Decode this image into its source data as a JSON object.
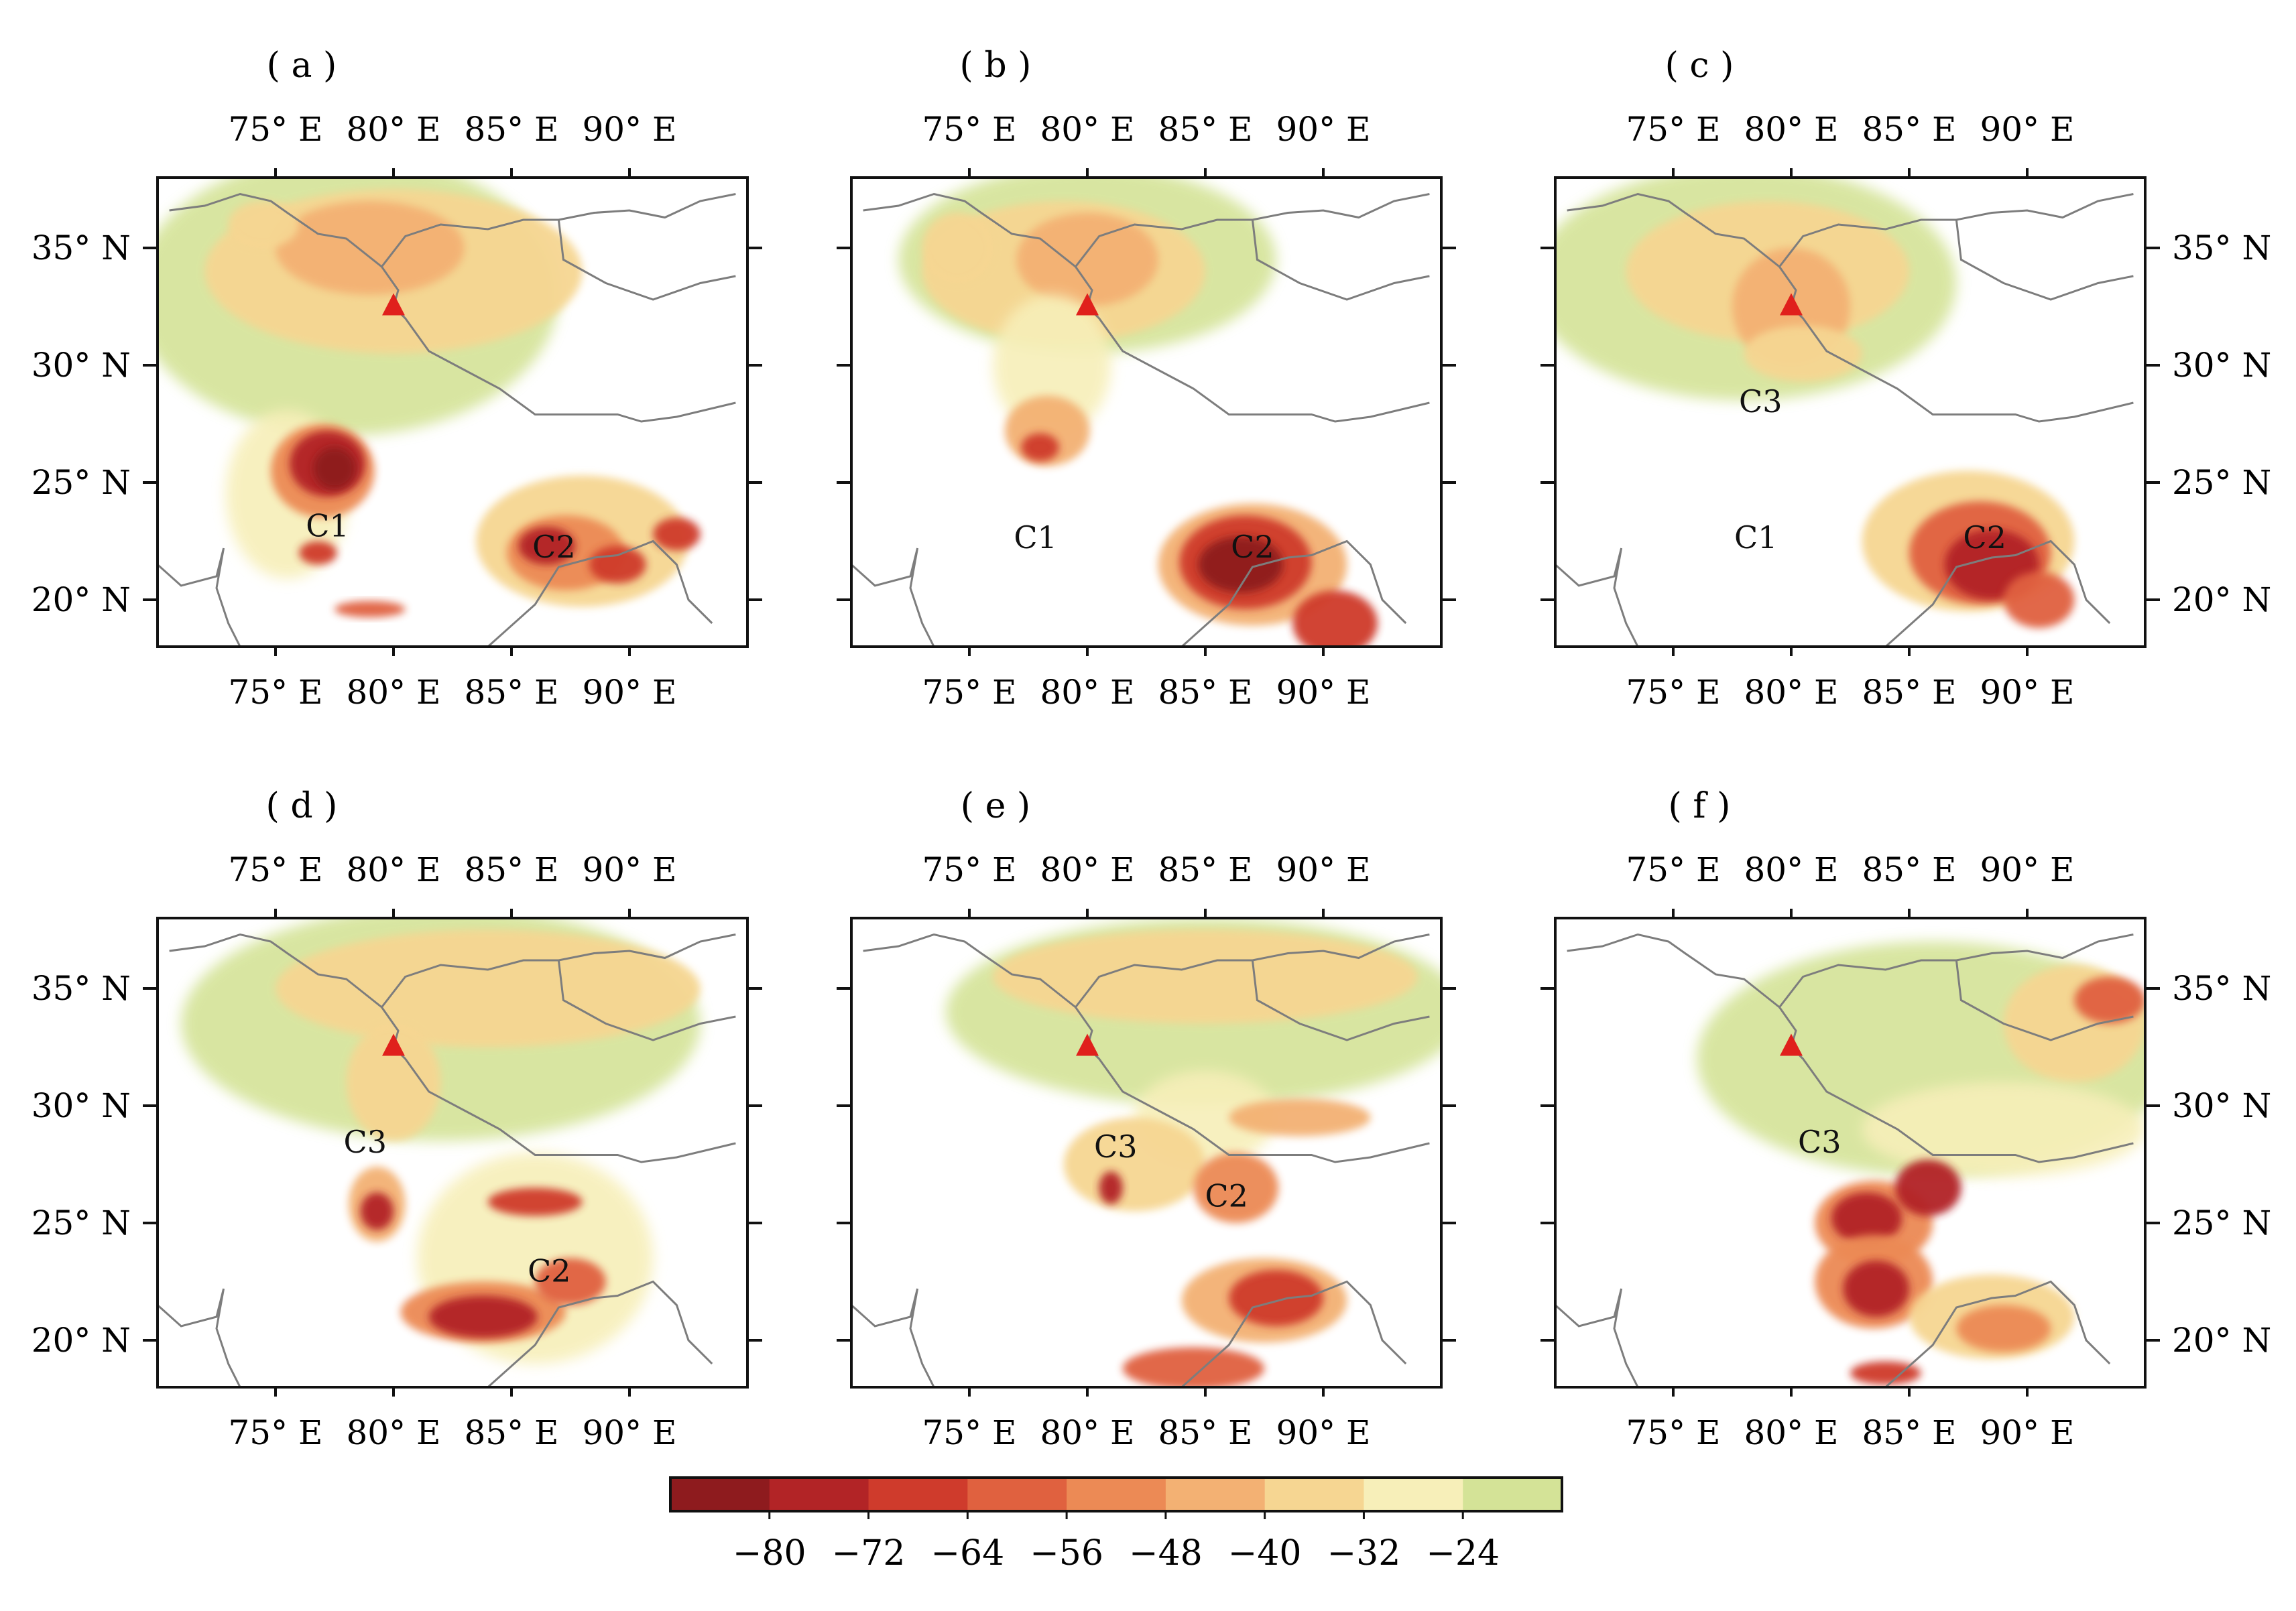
{
  "panels": [
    {
      "label": "( a )",
      "volcano": true,
      "cells": [
        "C1",
        "C2"
      ],
      "right_axis": false
    },
    {
      "label": "( b )",
      "volcano": true,
      "cells": [
        "C1",
        "C2"
      ],
      "right_axis": false
    },
    {
      "label": "( c )",
      "volcano": true,
      "cells": [
        "C3",
        "C1",
        "C2"
      ],
      "right_axis": true
    },
    {
      "label": "( d )",
      "volcano": true,
      "cells": [
        "C3",
        "C2"
      ],
      "right_axis": false
    },
    {
      "label": "( e )",
      "volcano": true,
      "cells": [
        "C3",
        "C2"
      ],
      "right_axis": false
    },
    {
      "label": "( f )",
      "volcano": true,
      "cells": [
        "C3"
      ],
      "right_axis": true
    }
  ],
  "map_extent": {
    "lon": [
      70,
      95
    ],
    "lat": [
      18,
      38
    ]
  },
  "lon_ticks": [
    "75° E",
    "80° E",
    "85° E",
    "90° E"
  ],
  "lat_ticks": [
    "35° N",
    "30° N",
    "25° N",
    "20° N"
  ],
  "colorbar": {
    "ticks": [
      "−80",
      "−72",
      "−64",
      "−56",
      "−48",
      "−40",
      "−32",
      "−24"
    ],
    "colors": [
      "#8e1b1e",
      "#b22426",
      "#cf3b2c",
      "#e0613f",
      "#ec8a55",
      "#f3b173",
      "#f6d692",
      "#f7efb9",
      "#d4e397"
    ]
  }
}
